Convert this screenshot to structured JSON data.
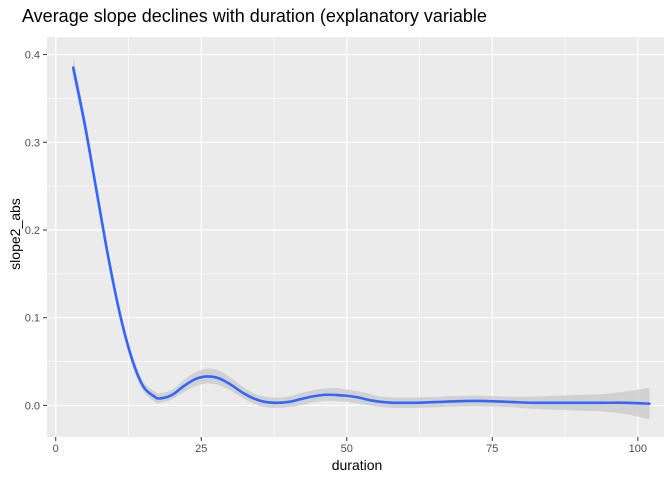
{
  "chart_data": {
    "type": "line",
    "title": "Average slope declines with duration (explanatory variable",
    "xlabel": "duration",
    "ylabel": "slope2_abs",
    "xlim": [
      -1.5,
      104.5
    ],
    "ylim": [
      -0.036,
      0.42
    ],
    "x_ticks": [
      0,
      25,
      50,
      75,
      100
    ],
    "x_tick_labels": [
      "0",
      "25",
      "50",
      "75",
      "100"
    ],
    "y_ticks": [
      0.0,
      0.1,
      0.2,
      0.3,
      0.4
    ],
    "y_tick_labels": [
      "0.0",
      "0.1",
      "0.2",
      "0.3",
      "0.4"
    ],
    "grid": true,
    "background": "#ebebeb",
    "grid_color": "#ffffff",
    "series": [
      {
        "color": "#3366ff",
        "band_color": "#cccccc",
        "x": [
          3,
          5,
          7,
          9,
          11,
          13,
          15,
          17,
          18,
          20,
          22,
          24,
          26,
          28,
          30,
          32,
          34,
          36,
          38,
          40,
          42,
          44,
          46,
          48,
          50,
          52,
          54,
          56,
          58,
          60,
          62,
          66,
          70,
          74,
          78,
          82,
          86,
          90,
          94,
          98,
          102
        ],
        "y": [
          0.385,
          0.32,
          0.245,
          0.17,
          0.105,
          0.055,
          0.022,
          0.01,
          0.008,
          0.012,
          0.022,
          0.03,
          0.033,
          0.031,
          0.024,
          0.015,
          0.008,
          0.004,
          0.003,
          0.004,
          0.007,
          0.01,
          0.012,
          0.012,
          0.011,
          0.009,
          0.006,
          0.004,
          0.003,
          0.003,
          0.003,
          0.004,
          0.005,
          0.005,
          0.004,
          0.003,
          0.003,
          0.003,
          0.003,
          0.003,
          0.002
        ],
        "lower": [
          0.375,
          0.31,
          0.236,
          0.162,
          0.098,
          0.049,
          0.017,
          0.004,
          0.003,
          0.007,
          0.015,
          0.022,
          0.025,
          0.023,
          0.017,
          0.009,
          0.002,
          -0.002,
          -0.003,
          -0.002,
          0.0,
          0.003,
          0.005,
          0.005,
          0.004,
          0.002,
          0.0,
          -0.002,
          -0.003,
          -0.003,
          -0.003,
          -0.002,
          -0.001,
          -0.001,
          -0.002,
          -0.004,
          -0.005,
          -0.006,
          -0.007,
          -0.01,
          -0.016
        ],
        "upper": [
          0.397,
          0.33,
          0.254,
          0.178,
          0.112,
          0.061,
          0.028,
          0.016,
          0.014,
          0.018,
          0.029,
          0.038,
          0.042,
          0.04,
          0.032,
          0.022,
          0.014,
          0.01,
          0.009,
          0.01,
          0.014,
          0.017,
          0.019,
          0.02,
          0.018,
          0.016,
          0.013,
          0.01,
          0.009,
          0.009,
          0.009,
          0.01,
          0.011,
          0.011,
          0.01,
          0.01,
          0.011,
          0.012,
          0.013,
          0.016,
          0.02
        ]
      }
    ]
  }
}
